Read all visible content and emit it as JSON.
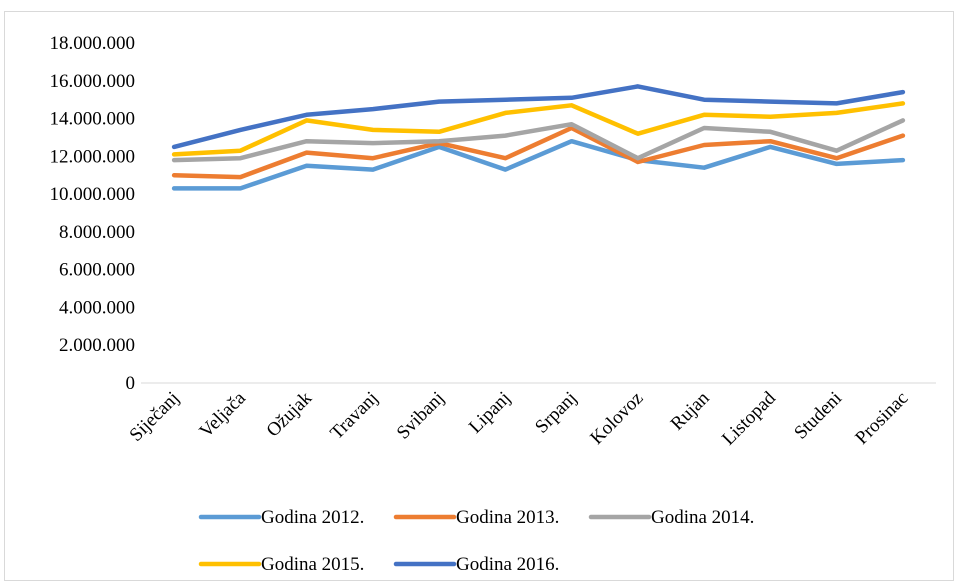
{
  "chart_data": {
    "type": "line",
    "title": "",
    "xlabel": "",
    "ylabel": "",
    "ylim": [
      0,
      18000000
    ],
    "y_tick_step": 2000000,
    "y_tick_labels": [
      "0",
      "2.000.000",
      "4.000.000",
      "6.000.000",
      "8.000.000",
      "10.000.000",
      "12.000.000",
      "14.000.000",
      "16.000.000",
      "18.000.000"
    ],
    "grid": false,
    "legend_position": "bottom",
    "categories": [
      "Siječanj",
      "Veljača",
      "Ožujak",
      "Travanj",
      "Svibanj",
      "Lipanj",
      "Srpanj",
      "Kolovoz",
      "Rujan",
      "Listopad",
      "Studeni",
      "Prosinac"
    ],
    "series": [
      {
        "name": "Godina 2012.",
        "color": "#5b9bd5",
        "values": [
          10300000,
          10300000,
          11500000,
          11300000,
          12500000,
          11300000,
          12800000,
          11800000,
          11400000,
          12500000,
          11600000,
          11800000
        ]
      },
      {
        "name": "Godina 2013.",
        "color": "#ed7d31",
        "values": [
          11000000,
          10900000,
          12200000,
          11900000,
          12700000,
          11900000,
          13500000,
          11700000,
          12600000,
          12800000,
          11900000,
          13100000
        ]
      },
      {
        "name": "Godina 2014.",
        "color": "#a5a5a5",
        "values": [
          11800000,
          11900000,
          12800000,
          12700000,
          12800000,
          13100000,
          13700000,
          11900000,
          13500000,
          13300000,
          12300000,
          13900000
        ]
      },
      {
        "name": "Godina 2015.",
        "color": "#ffc000",
        "values": [
          12100000,
          12300000,
          13900000,
          13400000,
          13300000,
          14300000,
          14700000,
          13200000,
          14200000,
          14100000,
          14300000,
          14800000
        ]
      },
      {
        "name": "Godina 2016.",
        "color": "#4472c4",
        "values": [
          12500000,
          13400000,
          14200000,
          14500000,
          14900000,
          15000000,
          15100000,
          15700000,
          15000000,
          14900000,
          14800000,
          15400000
        ]
      }
    ]
  }
}
